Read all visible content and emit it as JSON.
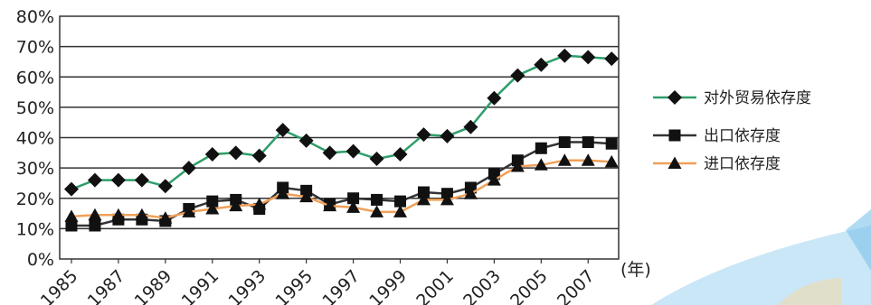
{
  "chart_data": {
    "type": "line",
    "title": "",
    "xlabel": "",
    "ylabel": "",
    "unit_label": "(年)",
    "x": [
      1985,
      1986,
      1987,
      1988,
      1989,
      1990,
      1991,
      1992,
      1993,
      1994,
      1995,
      1996,
      1997,
      1998,
      1999,
      2000,
      2001,
      2002,
      2003,
      2004,
      2005,
      2006,
      2007,
      2008
    ],
    "x_tick_labels": [
      "1985",
      "1987",
      "1989",
      "1991",
      "1993",
      "1995",
      "1997",
      "1999",
      "2001",
      "2003",
      "2005",
      "2007"
    ],
    "y_tick_labels": [
      "0%",
      "10%",
      "20%",
      "30%",
      "40%",
      "50%",
      "60%",
      "70%",
      "80%"
    ],
    "ylim": [
      0,
      80
    ],
    "grid": "horizontal",
    "legend_position": "right",
    "series": [
      {
        "name": "对外贸易依存度",
        "marker": "diamond",
        "color": "#2e9e6a",
        "values": [
          23,
          26,
          26,
          26,
          24,
          30,
          34.5,
          35,
          34,
          42.5,
          39,
          35,
          35.5,
          33,
          34.5,
          41,
          40.5,
          43.5,
          53,
          60.5,
          64,
          67,
          66.5,
          66
        ]
      },
      {
        "name": "出口依存度",
        "marker": "square",
        "color": "#333333",
        "values": [
          11,
          11,
          13,
          13,
          12.5,
          16.5,
          19,
          19.5,
          16.5,
          23.5,
          22.5,
          18,
          20,
          19.5,
          19,
          22,
          21.5,
          23.5,
          28,
          32.5,
          36.5,
          38.5,
          38.5,
          38
        ]
      },
      {
        "name": "进口依存度",
        "marker": "triangle",
        "color": "#f0a05a",
        "values": [
          14,
          14.5,
          14.5,
          14.5,
          13.5,
          15.5,
          16.5,
          17.5,
          18,
          21.5,
          20.5,
          17.5,
          17,
          15.5,
          15.5,
          19.5,
          19.5,
          21.5,
          26,
          30.5,
          31,
          32.5,
          32.5,
          32
        ]
      }
    ]
  }
}
